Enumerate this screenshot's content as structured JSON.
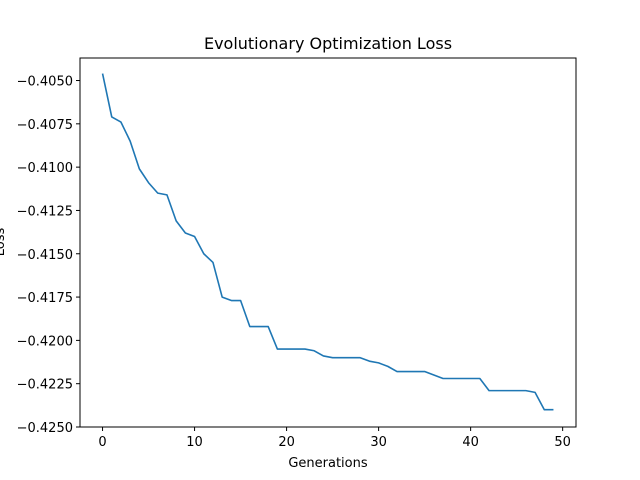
{
  "chart_data": {
    "type": "line",
    "title": "Evolutionary Optimization Loss",
    "xlabel": "Generations",
    "ylabel": "Loss",
    "xlim": [
      -2.45,
      51.45
    ],
    "ylim": [
      -0.425,
      -0.4037
    ],
    "xticks": [
      0,
      10,
      20,
      30,
      40,
      50
    ],
    "yticks": [
      -0.425,
      -0.4225,
      -0.42,
      -0.4175,
      -0.415,
      -0.4125,
      -0.41,
      -0.4075,
      -0.405
    ],
    "ytick_labels": [
      "−0.4250",
      "−0.4225",
      "−0.4200",
      "−0.4175",
      "−0.4150",
      "−0.4125",
      "−0.4100",
      "−0.4075",
      "−0.4050"
    ],
    "grid": false,
    "line_color": "#1f77b4",
    "series": [
      {
        "x": [
          0,
          1,
          2,
          3,
          4,
          5,
          6,
          7,
          8,
          9,
          10,
          11,
          12,
          13,
          14,
          15,
          16,
          17,
          18,
          19,
          20,
          21,
          22,
          23,
          24,
          25,
          26,
          27,
          28,
          29,
          30,
          31,
          32,
          33,
          34,
          35,
          36,
          37,
          38,
          39,
          40,
          41,
          42,
          43,
          44,
          45,
          46,
          47,
          48,
          49
        ],
        "y": [
          -0.4046,
          -0.4071,
          -0.4074,
          -0.4085,
          -0.4101,
          -0.4109,
          -0.4115,
          -0.4116,
          -0.4131,
          -0.4138,
          -0.414,
          -0.415,
          -0.4155,
          -0.4175,
          -0.4177,
          -0.4177,
          -0.4192,
          -0.4192,
          -0.4192,
          -0.4205,
          -0.4205,
          -0.4205,
          -0.4205,
          -0.4206,
          -0.4209,
          -0.421,
          -0.421,
          -0.421,
          -0.421,
          -0.4212,
          -0.4213,
          -0.4215,
          -0.4218,
          -0.4218,
          -0.4218,
          -0.4218,
          -0.422,
          -0.4222,
          -0.4222,
          -0.4222,
          -0.4222,
          -0.4222,
          -0.4229,
          -0.4229,
          -0.4229,
          -0.4229,
          -0.4229,
          -0.423,
          -0.424,
          -0.424
        ]
      }
    ]
  }
}
